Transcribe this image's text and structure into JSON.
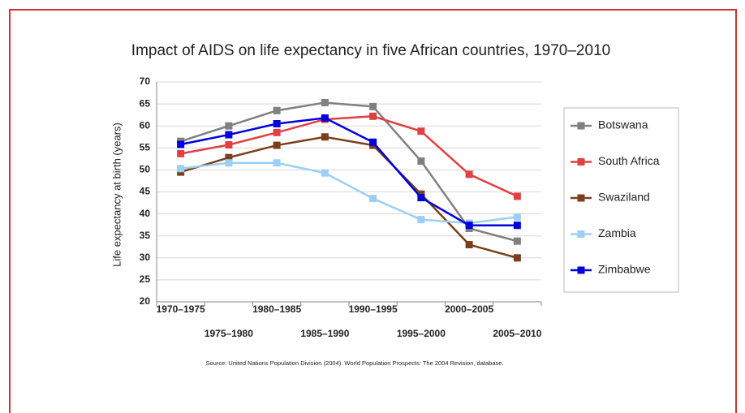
{
  "chart_data": {
    "type": "line",
    "title": "Impact of AIDS on life expectancy in five African countries, 1970–2010",
    "y_label": "Life expectancy at birth (years)",
    "source": "Source:  United Nations Population Division (2004).  World Population Prospects: The 2004 Revision, database.",
    "categories": [
      "1970–1975",
      "1975–1980",
      "1980–1985",
      "1985–1990",
      "1990–1995",
      "1995–2000",
      "2000–2005",
      "2005–2010"
    ],
    "series": [
      {
        "name": "Botswana",
        "color": "#808080",
        "values": [
          56.5,
          60,
          63.5,
          65.3,
          64.4,
          52,
          36.7,
          33.8
        ]
      },
      {
        "name": "South Africa",
        "color": "#e04040",
        "values": [
          53.7,
          55.7,
          58.5,
          61.5,
          62.2,
          58.8,
          49,
          44
        ]
      },
      {
        "name": "Swaziland",
        "color": "#7b3f1a",
        "values": [
          49.5,
          52.8,
          55.6,
          57.5,
          55.6,
          44.5,
          33,
          30
        ]
      },
      {
        "name": "Zambia",
        "color": "#9dcff5",
        "values": [
          50.3,
          51.6,
          51.6,
          49.3,
          43.5,
          38.7,
          37.9,
          39.3
        ]
      },
      {
        "name": "Zimbabwe",
        "color": "#0000dd",
        "values": [
          55.8,
          58,
          60.5,
          61.8,
          56.3,
          43.7,
          37.4,
          37.4
        ]
      }
    ],
    "ylim": [
      20,
      70
    ],
    "yticks": [
      20,
      25,
      30,
      35,
      40,
      45,
      50,
      55,
      60,
      65,
      70
    ],
    "grid": true,
    "legend": "right"
  }
}
